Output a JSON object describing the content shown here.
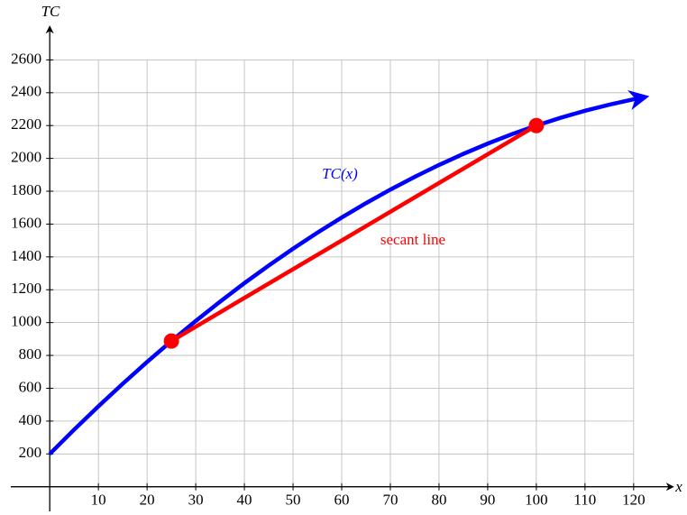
{
  "chart_data": {
    "type": "line",
    "xlabel": "x",
    "ylabel": "TC",
    "xlim": [
      -8,
      128
    ],
    "ylim": [
      -150,
      2800
    ],
    "xticks": [
      10,
      20,
      30,
      40,
      50,
      60,
      70,
      80,
      90,
      100,
      110,
      120
    ],
    "yticks": [
      200,
      400,
      600,
      800,
      1000,
      1200,
      1400,
      1600,
      1800,
      2000,
      2200,
      2400,
      2600
    ],
    "grid": true,
    "series": [
      {
        "name": "TC(x)",
        "color": "#0000ff",
        "arrow": true,
        "x": [
          0,
          5,
          10,
          15,
          20,
          25,
          30,
          35,
          40,
          45,
          50,
          55,
          60,
          65,
          70,
          75,
          80,
          85,
          90,
          95,
          100,
          105,
          110,
          115,
          120,
          122
        ],
        "values": [
          200,
          347.5,
          490,
          627.5,
          760,
          887.5,
          1010,
          1127.5,
          1240,
          1347.5,
          1450,
          1547.5,
          1640,
          1727.5,
          1810,
          1887.5,
          1960,
          2027.5,
          2090,
          2147.5,
          2200,
          2247.5,
          2290,
          2327.5,
          2360,
          2371.6
        ]
      },
      {
        "name": "secant line",
        "color": "#ff0000",
        "markers": true,
        "x": [
          25,
          100
        ],
        "values": [
          887.5,
          2200
        ]
      }
    ]
  }
}
